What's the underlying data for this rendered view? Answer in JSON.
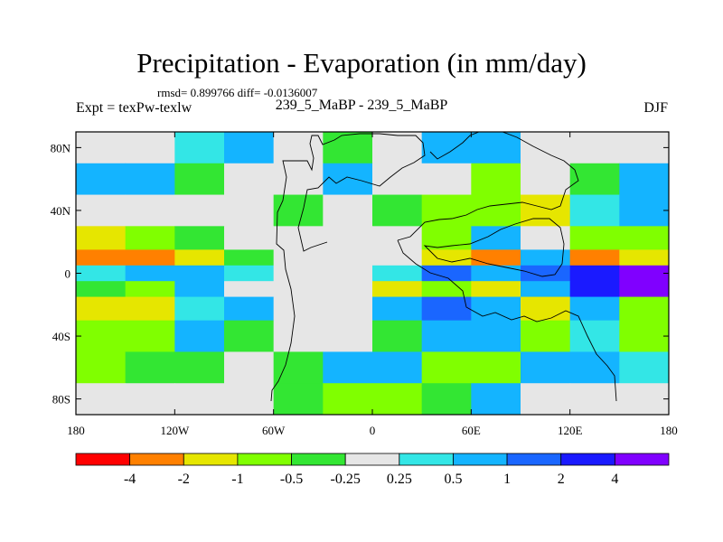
{
  "chart_data": {
    "type": "heatmap",
    "title": "Precipitation - Evaporation (in mm/day)",
    "stats_line": "rmsd= 0.899766 diff= -0.0136007",
    "left_label": "Expt = texPw-texlw",
    "center_label": "239_5_MaBP - 239_5_MaBP",
    "right_label": "DJF",
    "x_ticks": [
      "180",
      "120W",
      "60W",
      "0",
      "60E",
      "120E",
      "180"
    ],
    "y_ticks": [
      "80N",
      "40N",
      "0",
      "40S",
      "80S"
    ],
    "xlim": [
      -180,
      180
    ],
    "ylim": [
      -90,
      90
    ],
    "colorbar": {
      "levels": [
        "-4",
        "-2",
        "-1",
        "-0.5",
        "-0.25",
        "0.25",
        "0.5",
        "1",
        "2",
        "4"
      ],
      "colors": [
        "#ff0000",
        "#ff8000",
        "#e6e600",
        "#80ff00",
        "#33e633",
        "#e6e6e6",
        "#33e6e6",
        "#14b4ff",
        "#1a66ff",
        "#1a1aff",
        "#8000ff"
      ]
    },
    "bands": [
      {
        "lat": 80,
        "values": [
          0.1,
          0.1,
          0.3,
          0.6,
          0.1,
          -0.3,
          0.1,
          0.5,
          0.7,
          0.2,
          0.1,
          0.1
        ]
      },
      {
        "lat": 60,
        "values": [
          0.6,
          0.8,
          -0.4,
          0.1,
          0.1,
          0.6,
          0.1,
          0.1,
          -0.8,
          0.1,
          -0.3,
          0.5
        ]
      },
      {
        "lat": 40,
        "values": [
          0.1,
          0.2,
          0.1,
          0.1,
          -0.3,
          0.1,
          -0.3,
          -0.7,
          -0.6,
          -1.5,
          0.4,
          0.9
        ]
      },
      {
        "lat": 20,
        "values": [
          -1.5,
          -0.6,
          -0.4,
          0.1,
          0.1,
          0.1,
          0.1,
          -0.6,
          0.6,
          0.1,
          -0.7,
          -0.6
        ]
      },
      {
        "lat": 10,
        "values": [
          -2.5,
          -3.0,
          -1.5,
          -0.4,
          0.1,
          0.1,
          0.1,
          -1.5,
          -2.5,
          0.6,
          -2.5,
          -2.0
        ]
      },
      {
        "lat": 0,
        "values": [
          0.4,
          0.6,
          0.8,
          0.3,
          0.1,
          0.1,
          0.4,
          1.2,
          0.5,
          1.0,
          2.5,
          4.5
        ]
      },
      {
        "lat": -10,
        "values": [
          -0.4,
          -0.6,
          0.5,
          0.1,
          0.1,
          0.1,
          -1.2,
          -0.8,
          -2.0,
          0.5,
          2.5,
          4.5
        ]
      },
      {
        "lat": -20,
        "values": [
          -1.5,
          -1.2,
          0.4,
          0.6,
          0.1,
          0.1,
          0.6,
          1.5,
          0.6,
          -1.5,
          0.6,
          -0.6
        ]
      },
      {
        "lat": -40,
        "values": [
          -0.8,
          -0.7,
          0.5,
          -0.4,
          0.1,
          0.1,
          -0.4,
          0.6,
          0.7,
          -0.6,
          0.4,
          -0.7
        ]
      },
      {
        "lat": -60,
        "values": [
          -0.6,
          -0.4,
          -0.4,
          0.1,
          -0.4,
          0.6,
          0.6,
          -0.6,
          -0.8,
          0.6,
          0.5,
          0.3
        ]
      },
      {
        "lat": -80,
        "values": [
          0.1,
          0.1,
          0.1,
          0.1,
          -0.4,
          -0.6,
          -0.7,
          -0.4,
          0.6,
          0.1,
          0.1,
          0.1
        ]
      }
    ]
  }
}
